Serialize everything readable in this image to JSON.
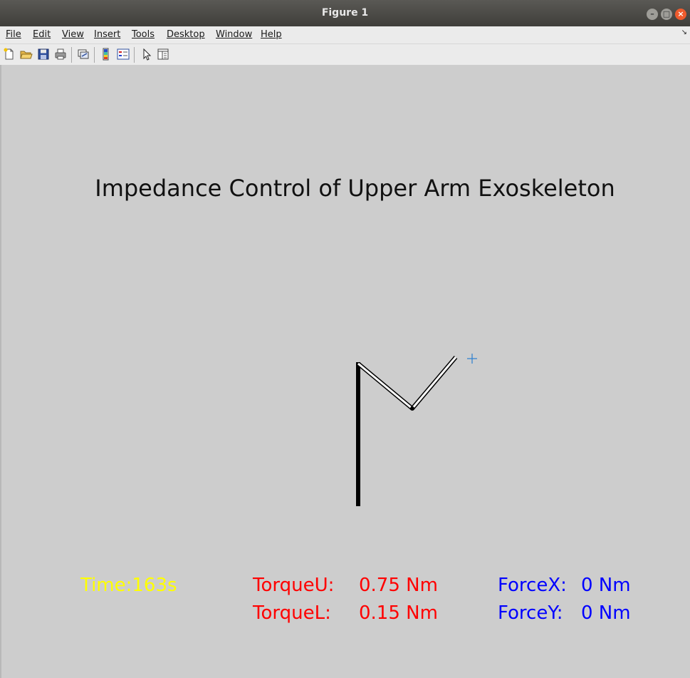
{
  "window": {
    "title": "Figure 1"
  },
  "menu": {
    "file": "File",
    "edit": "Edit",
    "view": "View",
    "insert": "Insert",
    "tools": "Tools",
    "desktop": "Desktop",
    "window": "Window",
    "help": "Help"
  },
  "toolbar": {
    "icons": [
      "new-figure-icon",
      "open-icon",
      "save-icon",
      "print-icon",
      "link-plot-icon",
      "insert-colorbar-icon",
      "insert-legend-icon",
      "select-arrow-icon",
      "property-inspector-icon"
    ]
  },
  "figure": {
    "title": "Impedance Control of Upper Arm Exoskeleton",
    "time_label": "Time:",
    "time_value": "163s",
    "torque_u_label": "TorqueU:",
    "torque_u_value": "0.75 Nm",
    "torque_l_label": "TorqueL:",
    "torque_l_value": "0.15 Nm",
    "force_x_label": "ForceX:",
    "force_x_value": "0 Nm",
    "force_y_label": "ForceY:",
    "force_y_value": "0 Nm",
    "colors": {
      "time": "#ffff00",
      "torque": "#ff0000",
      "force": "#0000ff",
      "target_marker": "#2a7fd0"
    }
  }
}
